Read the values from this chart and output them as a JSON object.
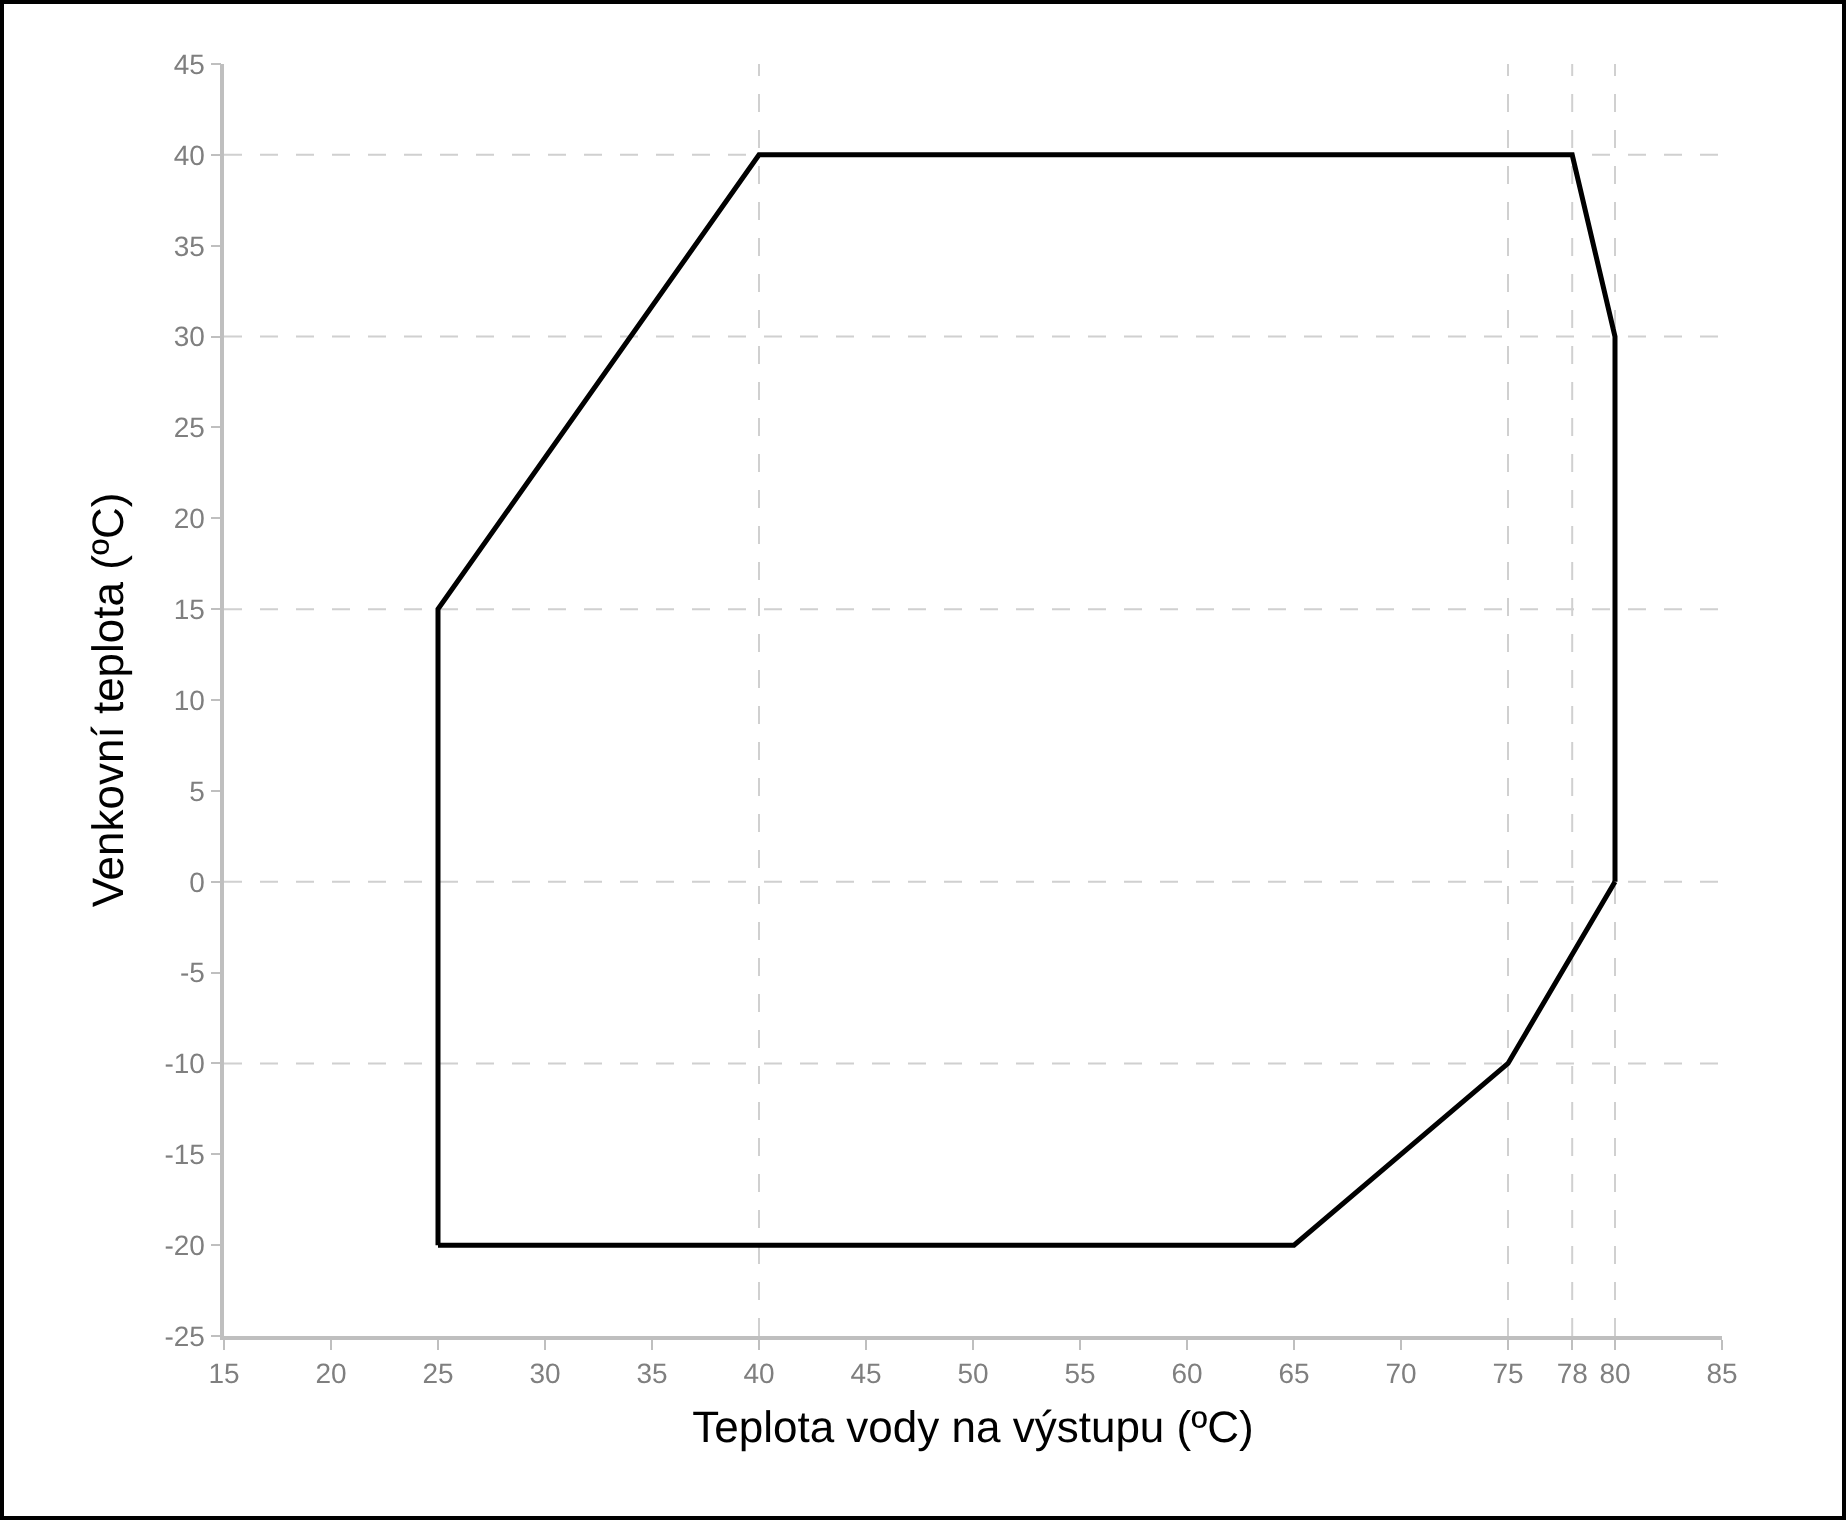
{
  "chart_data": {
    "type": "line",
    "xlabel": "Teplota vody na výstupu (ºC)",
    "ylabel": "Venkovní teplota (ºC)",
    "series": [
      {
        "color": "#000000",
        "x": [
          25,
          25,
          40,
          78,
          80,
          80
        ],
        "values": [
          -20,
          15,
          40,
          40,
          30,
          0
        ]
      },
      {
        "color": "#000000",
        "x": [
          25,
          65,
          75,
          80
        ],
        "values": [
          -20,
          -20,
          -10,
          0
        ]
      }
    ],
    "xlim": [
      15,
      85
    ],
    "xticks": [
      15,
      20,
      25,
      30,
      35,
      40,
      45,
      50,
      55,
      60,
      65,
      70,
      75,
      78,
      80,
      85
    ],
    "ylim": [
      -25,
      45
    ],
    "yticks": [
      -25,
      -20,
      -15,
      -10,
      -5,
      0,
      5,
      10,
      15,
      20,
      25,
      30,
      35,
      40,
      45
    ],
    "ref_lines": [
      {
        "axis": "y",
        "value": 40,
        "color": "#d0d0d0",
        "line_style": "dashed"
      },
      {
        "axis": "y",
        "value": 30,
        "color": "#d0d0d0",
        "line_style": "dashed"
      },
      {
        "axis": "y",
        "value": 15,
        "color": "#d0d0d0",
        "line_style": "dashed"
      },
      {
        "axis": "y",
        "value": 0,
        "color": "#d0d0d0",
        "line_style": "dashed"
      },
      {
        "axis": "y",
        "value": -10,
        "color": "#d0d0d0",
        "line_style": "dashed"
      },
      {
        "axis": "x",
        "value": 40,
        "color": "#d0d0d0",
        "line_style": "dashed"
      },
      {
        "axis": "x",
        "value": 75,
        "color": "#d0d0d0",
        "line_style": "dashed"
      },
      {
        "axis": "x",
        "value": 78,
        "color": "#d0d0d0",
        "line_style": "dashed"
      },
      {
        "axis": "x",
        "value": 80,
        "color": "#d0d0d0",
        "line_style": "dashed"
      }
    ],
    "line_style": "solid"
  }
}
